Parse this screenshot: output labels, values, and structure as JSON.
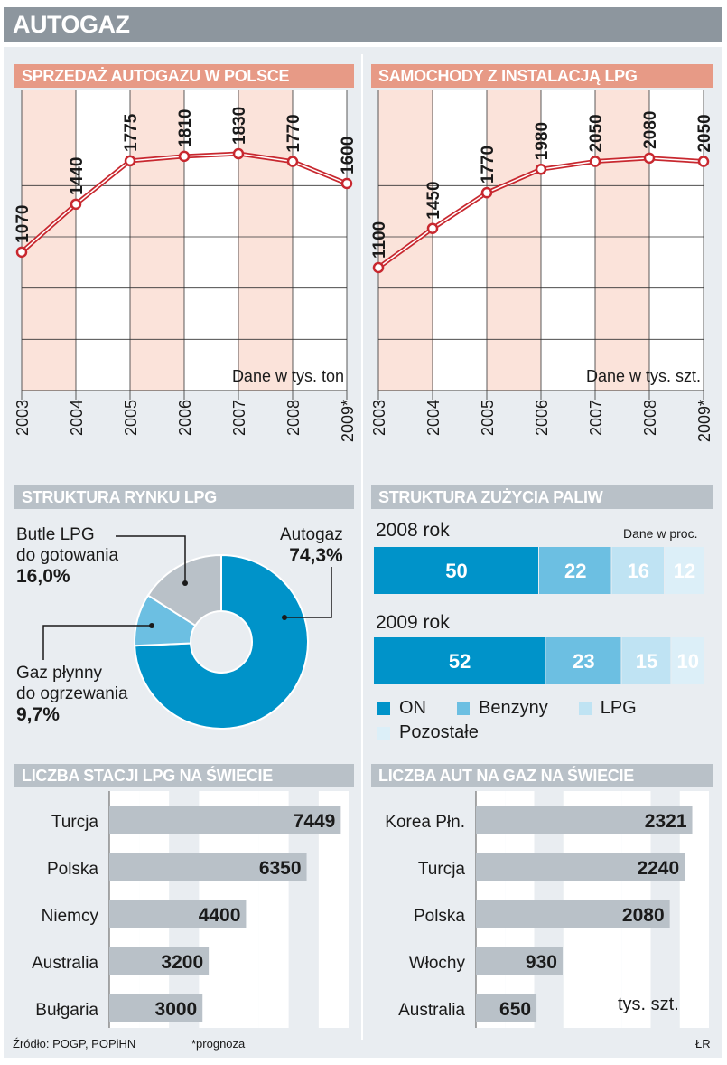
{
  "title": "AUTOGAZ",
  "colors": {
    "pink": "#e79a86",
    "pink_light": "#fbe3da",
    "red": "#c8282f",
    "blue": "#0093c9",
    "blue2": "#6cbfe2",
    "blue3": "#bfe3f3",
    "blue4": "#dceff8",
    "gray_bar": "#b9c1c8",
    "gray_dark": "#8d969e"
  },
  "sales_chart": {
    "title": "SPRZEDAŻ AUTOGAZU W POLSCE",
    "unit": "Dane w tys. ton",
    "categories": [
      "2003",
      "2004",
      "2005",
      "2006",
      "2007",
      "2008",
      "2009*"
    ]
  },
  "cars_chart": {
    "title": "SAMOCHODY Z INSTALACJĄ LPG",
    "unit": "Dane w tys. szt.",
    "categories": [
      "2003",
      "2004",
      "2005",
      "2006",
      "2007",
      "2008",
      "2009*"
    ]
  },
  "market_chart": {
    "title": "STRUKTURA RYNKU LPG",
    "autogaz_label": "Autogaz",
    "autogaz_value": "74,3%",
    "butle_label_1": "Butle LPG",
    "butle_label_2": "do gotowania",
    "butle_value": "16,0%",
    "gaz_label_1": "Gaz płynny",
    "gaz_label_2": "do ogrzewania",
    "gaz_value": "9,7%"
  },
  "fuel_chart": {
    "title": "STRUKTURA ZUŻYCIA PALIW",
    "unit": "Dane w proc.",
    "row1_label": "2008 rok",
    "row2_label": "2009 rok",
    "legend": [
      "ON",
      "Benzyny",
      "LPG",
      "Pozostałe"
    ]
  },
  "stations_chart": {
    "title": "LICZBA STACJI LPG NA ŚWIECIE"
  },
  "autos_chart": {
    "title": "LICZBA AUT NA GAZ NA ŚWIECIE",
    "unit": "tys. szt."
  },
  "footer": {
    "source": "Źródło: POGP, POPiHN",
    "forecast": "*prognoza",
    "author": "ŁR"
  },
  "chart_data": [
    {
      "type": "line",
      "title": "SPRZEDAŻ AUTOGAZU W POLSCE",
      "ylabel": "Dane w tys. ton",
      "x": [
        "2003",
        "2004",
        "2005",
        "2006",
        "2007",
        "2008",
        "2009*"
      ],
      "values": [
        1070,
        1440,
        1775,
        1810,
        1830,
        1770,
        1600
      ],
      "ylim": [
        0,
        1900
      ]
    },
    {
      "type": "line",
      "title": "SAMOCHODY Z INSTALACJĄ LPG",
      "ylabel": "Dane w tys. szt.",
      "x": [
        "2003",
        "2004",
        "2005",
        "2006",
        "2007",
        "2008",
        "2009*"
      ],
      "values": [
        1100,
        1450,
        1770,
        1980,
        2050,
        2080,
        2050
      ],
      "ylim": [
        0,
        2200
      ]
    },
    {
      "type": "pie",
      "title": "STRUKTURA RYNKU LPG",
      "labels": [
        "Autogaz",
        "Gaz płynny do ogrzewania",
        "Butle LPG do gotowania"
      ],
      "values": [
        74.3,
        9.7,
        16.0
      ]
    },
    {
      "type": "bar",
      "title": "STRUKTURA ZUŻYCIA PALIW",
      "categories": [
        "2008 rok",
        "2009 rok"
      ],
      "series": [
        {
          "name": "ON",
          "values": [
            50,
            52
          ]
        },
        {
          "name": "Benzyny",
          "values": [
            22,
            23
          ]
        },
        {
          "name": "LPG",
          "values": [
            16,
            15
          ]
        },
        {
          "name": "Pozostałe",
          "values": [
            12,
            10
          ]
        }
      ]
    },
    {
      "type": "bar",
      "title": "LICZBA STACJI LPG NA ŚWIECIE",
      "categories": [
        "Turcja",
        "Polska",
        "Niemcy",
        "Australia",
        "Bułgaria"
      ],
      "values": [
        7449,
        6350,
        4400,
        3200,
        3000
      ],
      "xlim": [
        0,
        7700
      ]
    },
    {
      "type": "bar",
      "title": "LICZBA AUT NA GAZ NA ŚWIECIE",
      "ylabel": "tys. szt.",
      "categories": [
        "Korea Płn.",
        "Turcja",
        "Polska",
        "Włochy",
        "Australia"
      ],
      "values": [
        2321,
        2240,
        2080,
        930,
        650
      ],
      "xlim": [
        0,
        2500
      ]
    }
  ]
}
